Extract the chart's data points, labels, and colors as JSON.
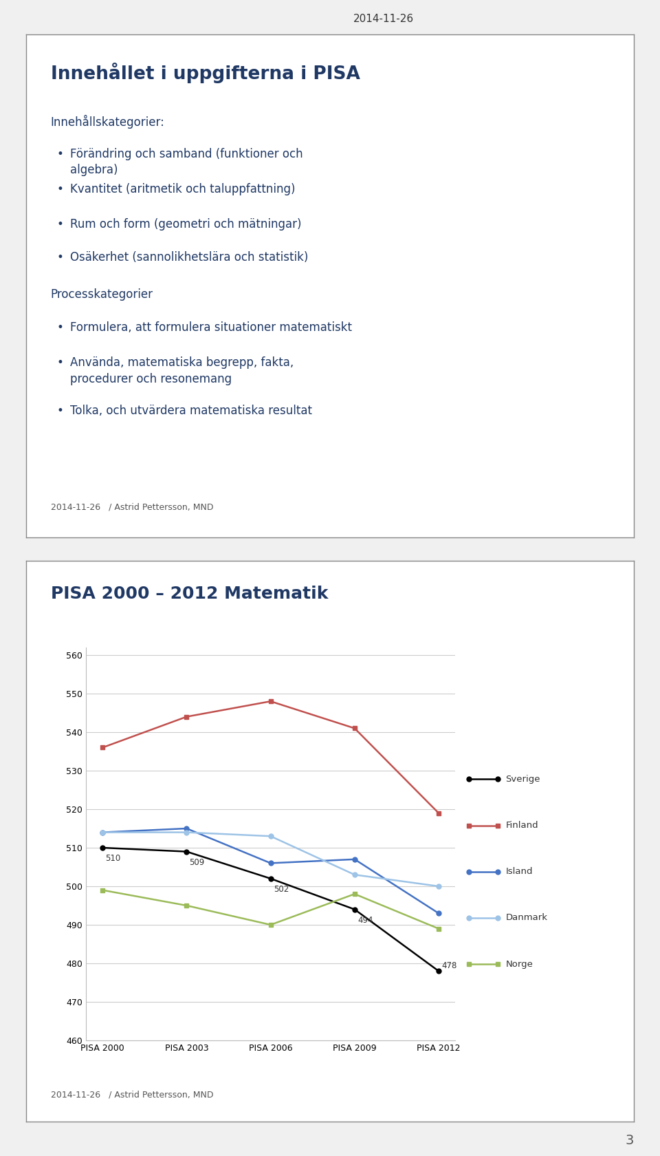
{
  "page_date": "2014-11-26",
  "page_number": "3",
  "slide1": {
    "title": "Innehållet i uppgifterna i PISA",
    "subtitle": "Innehållskategorier:",
    "bullets_innehall": [
      "Förändring och samband (funktioner och\nalgebra)",
      "Kvantitet (aritmetik och taluppfattning)",
      "Rum och form (geometri och mätningar)",
      "Osäkerhet (sannolikhetslära och statistik)"
    ],
    "subtitle2": "Processkategorier",
    "bullets_process": [
      "Formulera, att formulera situationer matematiskt",
      "Använda, matematiska begrepp, fakta,\nprocedurer och resonemang",
      "Tolka, och utvärdera matematiska resultat"
    ],
    "footer": "2014-11-26   / Astrid Pettersson, MND"
  },
  "slide2": {
    "title": "PISA 2000 – 2012 Matematik",
    "x_labels": [
      "PISA 2000",
      "PISA 2003",
      "PISA 2006",
      "PISA 2009",
      "PISA 2012"
    ],
    "series": [
      {
        "name": "Sverige",
        "color": "#000000",
        "marker": "o",
        "values": [
          510,
          509,
          502,
          494,
          478
        ],
        "labels": [
          "510",
          "509",
          "502",
          "494",
          "478"
        ]
      },
      {
        "name": "Finland",
        "color": "#c0504d",
        "marker": "s",
        "values": [
          536,
          544,
          548,
          541,
          519
        ],
        "labels": [
          null,
          null,
          null,
          null,
          null
        ]
      },
      {
        "name": "Island",
        "color": "#4472c4",
        "marker": "o",
        "values": [
          514,
          515,
          506,
          507,
          493
        ],
        "labels": [
          null,
          null,
          null,
          null,
          null
        ]
      },
      {
        "name": "Danmark",
        "color": "#9dc3e6",
        "marker": "o",
        "values": [
          514,
          514,
          513,
          503,
          500
        ],
        "labels": [
          null,
          null,
          null,
          null,
          null
        ]
      },
      {
        "name": "Norge",
        "color": "#9bbb59",
        "marker": "s",
        "values": [
          499,
          495,
          490,
          498,
          489
        ],
        "labels": [
          null,
          null,
          null,
          null,
          null
        ]
      }
    ],
    "ylim": [
      460,
      562
    ],
    "yticks": [
      460,
      470,
      480,
      490,
      500,
      510,
      520,
      530,
      540,
      550,
      560
    ],
    "footer": "2014-11-26   / Astrid Pettersson, MND",
    "title_color": "#1f3864"
  },
  "background_color": "#f0f0f0",
  "slide_background": "#ffffff",
  "border_color": "#888888",
  "title_color_slide1": "#1f3864",
  "body_color": "#1f3864"
}
